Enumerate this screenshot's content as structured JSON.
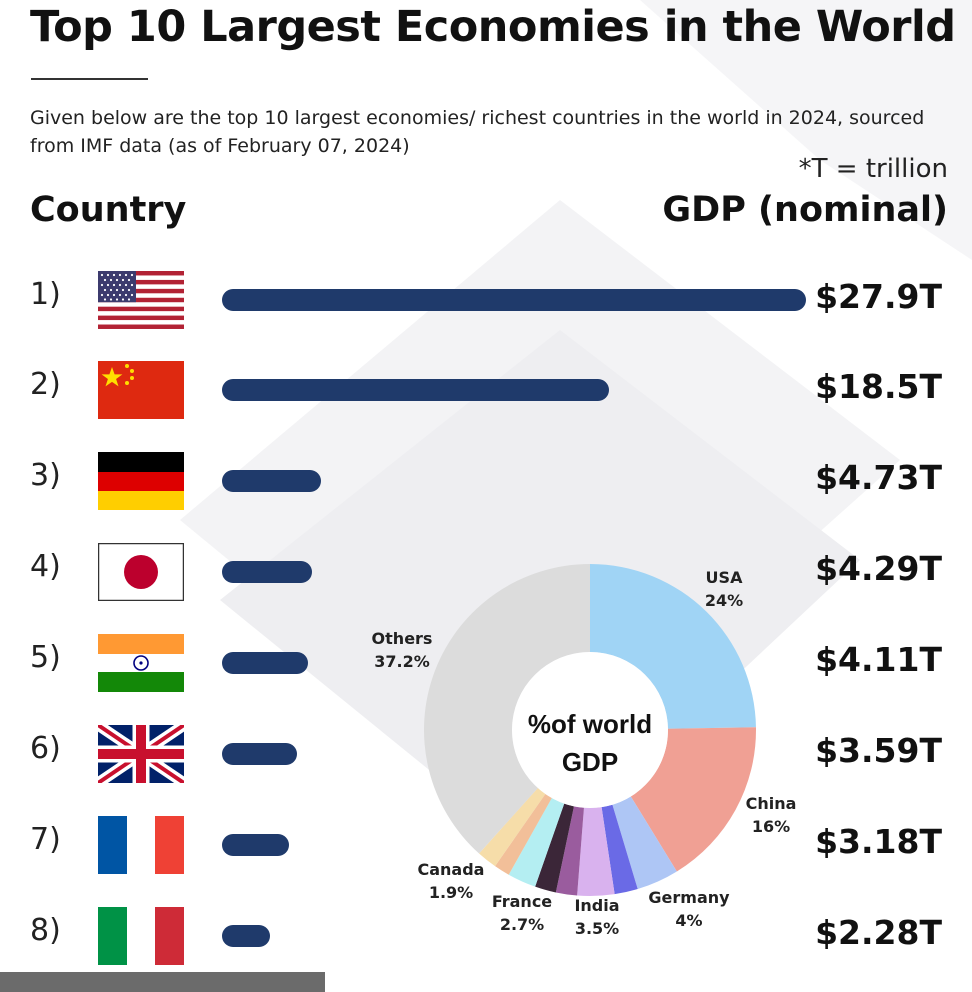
{
  "title": "Top 10 Largest Economies in the World",
  "subtitle": "Given below are the top 10 largest economies/ richest countries in the world in 2024, sourced from IMF data (as of February 07, 2024)",
  "unit_note": "*T = trillion",
  "columns": {
    "left": "Country",
    "right": "GDP (nominal)"
  },
  "colors": {
    "bar": "#1f3a6b"
  },
  "chart_data": [
    {
      "type": "bar",
      "orientation": "horizontal",
      "categories": [
        "1)",
        "2)",
        "3)",
        "4)",
        "5)",
        "6)",
        "7)",
        "8)"
      ],
      "flags": [
        "usa-flag-icon",
        "china-flag-icon",
        "germany-flag-icon",
        "japan-flag-icon",
        "india-flag-icon",
        "uk-flag-icon",
        "france-flag-icon",
        "italy-flag-icon"
      ],
      "values": [
        27.9,
        18.5,
        4.73,
        4.29,
        4.11,
        3.59,
        3.18,
        2.28
      ],
      "labels": [
        "$27.9T",
        "$18.5T",
        "$4.73T",
        "$4.29T",
        "$4.11T",
        "$3.59T",
        "$3.18T",
        "$2.28T"
      ],
      "xlim": [
        0,
        27.9
      ]
    },
    {
      "type": "pie",
      "donut": true,
      "center_label": [
        "%of world",
        "GDP"
      ],
      "slices": [
        {
          "name": "USA",
          "label": "24%",
          "value": 24,
          "color": "#a0d4f5"
        },
        {
          "name": "China",
          "label": "16%",
          "value": 16,
          "color": "#f0a094"
        },
        {
          "name": "Germany",
          "label": "4%",
          "value": 4,
          "color": "#aec6f5"
        },
        {
          "name": "",
          "label": "",
          "value": 2.2,
          "color": "#6a6ae6"
        },
        {
          "name": "India",
          "label": "3.5%",
          "value": 3.5,
          "color": "#d9b2ee"
        },
        {
          "name": "",
          "label": "",
          "value": 2.0,
          "color": "#9a5c9e"
        },
        {
          "name": "",
          "label": "",
          "value": 2.0,
          "color": "#3b2638"
        },
        {
          "name": "France",
          "label": "2.7%",
          "value": 2.7,
          "color": "#b4eef2"
        },
        {
          "name": "",
          "label": "",
          "value": 1.5,
          "color": "#f2bf99"
        },
        {
          "name": "Canada",
          "label": "1.9%",
          "value": 1.9,
          "color": "#f6dda9"
        },
        {
          "name": "Others",
          "label": "37.2%",
          "value": 37.2,
          "color": "#dcdcdc"
        }
      ]
    }
  ]
}
